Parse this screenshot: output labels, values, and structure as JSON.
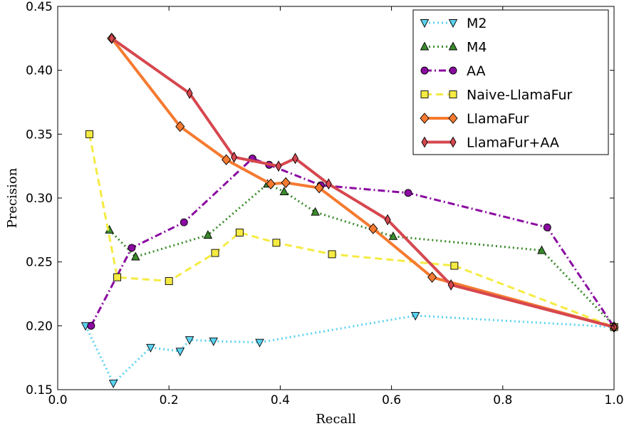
{
  "chart_data": {
    "type": "line",
    "xlabel": "Recall",
    "ylabel": "Precision",
    "xlim": [
      0.0,
      1.0
    ],
    "ylim": [
      0.15,
      0.45
    ],
    "xticks": [
      "0.0",
      "0.2",
      "0.4",
      "0.6",
      "0.8",
      "1.0"
    ],
    "yticks": [
      "0.15",
      "0.20",
      "0.25",
      "0.30",
      "0.35",
      "0.40",
      "0.45"
    ],
    "grid": false,
    "legend_position": "top-right",
    "series": [
      {
        "name": "M2",
        "color": "#5bd3f0",
        "linestyle": "dotted",
        "marker": "triangle-down",
        "points": [
          [
            0.05,
            0.2
          ],
          [
            0.1,
            0.155
          ],
          [
            0.167,
            0.183
          ],
          [
            0.22,
            0.18
          ],
          [
            0.237,
            0.189
          ],
          [
            0.28,
            0.188
          ],
          [
            0.363,
            0.187
          ],
          [
            0.643,
            0.208
          ],
          [
            1.0,
            0.199
          ]
        ]
      },
      {
        "name": "M4",
        "color": "#3b8a2c",
        "linestyle": "dotted",
        "marker": "triangle-up",
        "points": [
          [
            0.093,
            0.275
          ],
          [
            0.14,
            0.254
          ],
          [
            0.27,
            0.271
          ],
          [
            0.377,
            0.311
          ],
          [
            0.407,
            0.305
          ],
          [
            0.463,
            0.289
          ],
          [
            0.603,
            0.27
          ],
          [
            0.87,
            0.259
          ],
          [
            1.0,
            0.2
          ]
        ]
      },
      {
        "name": "AA",
        "color": "#8a0ba0",
        "linestyle": "dashdot",
        "marker": "circle",
        "points": [
          [
            0.06,
            0.2
          ],
          [
            0.133,
            0.261
          ],
          [
            0.227,
            0.281
          ],
          [
            0.35,
            0.331
          ],
          [
            0.38,
            0.326
          ],
          [
            0.473,
            0.31
          ],
          [
            0.63,
            0.304
          ],
          [
            0.88,
            0.277
          ],
          [
            1.0,
            0.199
          ]
        ]
      },
      {
        "name": "Naive-LlamaFur",
        "color": "#f5eb42",
        "linestyle": "dashed",
        "marker": "square",
        "points": [
          [
            0.057,
            0.35
          ],
          [
            0.107,
            0.238
          ],
          [
            0.2,
            0.235
          ],
          [
            0.283,
            0.257
          ],
          [
            0.327,
            0.273
          ],
          [
            0.393,
            0.265
          ],
          [
            0.493,
            0.256
          ],
          [
            0.713,
            0.247
          ],
          [
            1.0,
            0.199
          ]
        ]
      },
      {
        "name": "LlamaFur",
        "color": "#f57a30",
        "linestyle": "solid",
        "marker": "diamond",
        "points": [
          [
            0.097,
            0.425
          ],
          [
            0.22,
            0.356
          ],
          [
            0.303,
            0.33
          ],
          [
            0.383,
            0.311
          ],
          [
            0.41,
            0.312
          ],
          [
            0.47,
            0.308
          ],
          [
            0.567,
            0.276
          ],
          [
            0.673,
            0.238
          ],
          [
            1.0,
            0.199
          ]
        ]
      },
      {
        "name": "LlamaFur+AA",
        "color": "#d6474f",
        "linestyle": "solid",
        "marker": "thin-diamond",
        "points": [
          [
            0.097,
            0.425
          ],
          [
            0.237,
            0.382
          ],
          [
            0.317,
            0.332
          ],
          [
            0.397,
            0.325
          ],
          [
            0.427,
            0.331
          ],
          [
            0.487,
            0.311
          ],
          [
            0.593,
            0.283
          ],
          [
            0.707,
            0.232
          ],
          [
            1.0,
            0.199
          ]
        ]
      }
    ]
  }
}
